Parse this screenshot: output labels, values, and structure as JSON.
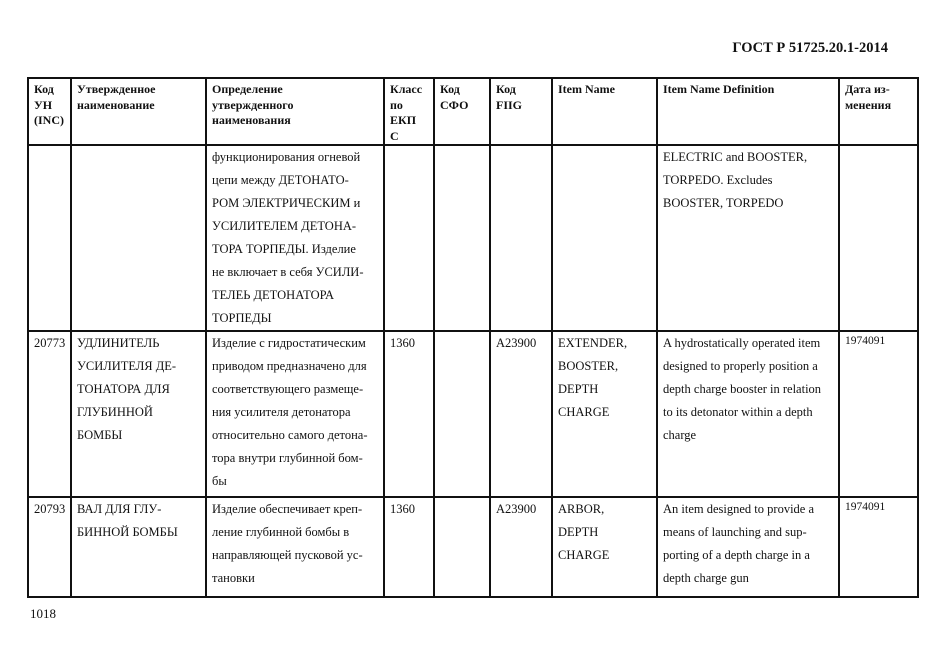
{
  "document_id": "ГОСТ Р 51725.20.1-2014",
  "page_number": "1018",
  "table": {
    "headers": [
      "Код\nУН\n(INC)",
      "Утвержденное\nнаименование",
      "Определение\nутвержденного\nнаименования",
      "Класс\nпо\nЕКП\nС",
      "Код\nСФО",
      "Код\nFIIG",
      "Item Name",
      "Item Name Definition",
      "Дата из-\nменения"
    ],
    "rows": [
      {
        "inc": "",
        "name": "",
        "definition": "функционирования огневой\nцепи между ДЕТОНАТО-\nРОМ ЭЛЕКТРИЧЕСКИМ и\nУСИЛИТЕЛЕМ ДЕТОНА-\nТОРА ТОРПЕДЫ. Изделие\nне включает в себя УСИЛИ-\nТЕЛЕЬ ДЕТОНАТОРА\nТОРПЕДЫ",
        "class": "",
        "sfo": "",
        "fiig": "",
        "item_name": "",
        "item_definition": "ELECTRIC and BOOSTER,\nTORPEDO. Excludes\nBOOSTER, TORPEDO",
        "date": ""
      },
      {
        "inc": "20773",
        "name": "УДЛИНИТЕЛЬ\nУСИЛИТЕЛЯ ДЕ-\nТОНАТОРА ДЛЯ\nГЛУБИННОЙ\nБОМБЫ",
        "definition": "Изделие с гидростатическим\nприводом предназначено для\nсоответствующего размеще-\nния усилителя детонатора\nотносительно самого детона-\nтора внутри глубинной бом-\nбы",
        "class": "1360",
        "sfo": "",
        "fiig": "A23900",
        "item_name": "EXTENDER,\nBOOSTER,\nDEPTH\nCHARGE",
        "item_definition": "A hydrostatically operated item\ndesigned to properly position a\ndepth charge booster in relation\nto its detonator within a depth\ncharge",
        "date": "1974091"
      },
      {
        "inc": "20793",
        "name": "ВАЛ ДЛЯ ГЛУ-\nБИННОЙ БОМБЫ",
        "definition": "Изделие обеспечивает креп-\nление глубинной бомбы в\nнаправляющей пусковой ус-\nтановки",
        "class": "1360",
        "sfo": "",
        "fiig": "A23900",
        "item_name": "ARBOR,\nDEPTH\nCHARGE",
        "item_definition": "An item designed to provide a\nmeans of launching and sup-\nporting of a depth charge in a\ndepth charge gun",
        "date": "1974091"
      }
    ]
  }
}
